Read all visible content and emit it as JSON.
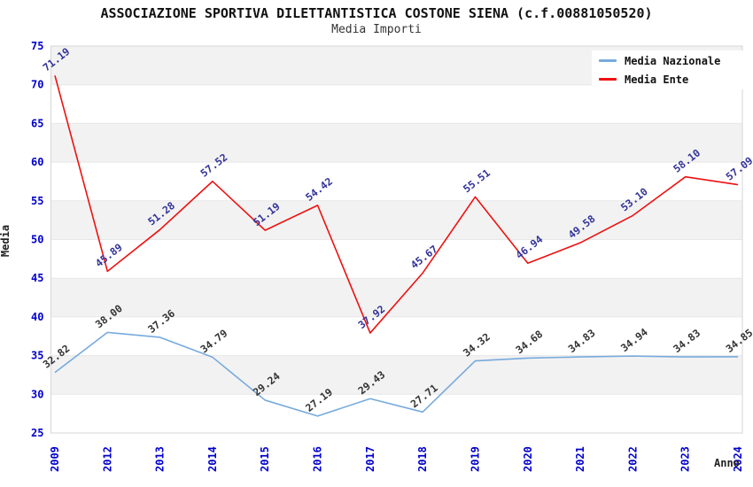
{
  "header": {
    "title": "ASSOCIAZIONE SPORTIVA DILETTANTISTICA COSTONE SIENA (c.f.00881050520)",
    "subtitle": "Media Importi"
  },
  "chart_data": {
    "type": "line",
    "title": "ASSOCIAZIONE SPORTIVA DILETTANTISTICA COSTONE SIENA (c.f.00881050520)",
    "subtitle": "Media Importi",
    "xlabel": "Anno",
    "ylabel": "Media",
    "ylim": [
      25,
      75
    ],
    "ytick_step": 5,
    "ytick_labels": [
      "25",
      "30",
      "35",
      "40",
      "45",
      "50",
      "55",
      "60",
      "65",
      "70",
      "75"
    ],
    "grid": true,
    "band_fill": "#f2f2f2",
    "gridline_color": "#e7e7e7",
    "plot_border_color": "#d6d6d6",
    "tick_label_color": "#0000cc",
    "legend_position": "top-right",
    "categories": [
      "2009",
      "2012",
      "2013",
      "2014",
      "2015",
      "2016",
      "2017",
      "2018",
      "2019",
      "2020",
      "2021",
      "2022",
      "2023",
      "2024"
    ],
    "series": [
      {
        "name": "Media Nazionale",
        "color": "#77aade",
        "label_color": "#333333",
        "values": [
          32.82,
          38.0,
          37.36,
          34.79,
          29.24,
          27.19,
          29.43,
          27.71,
          34.32,
          34.68,
          34.83,
          34.94,
          34.83,
          34.85
        ]
      },
      {
        "name": "Media Ente",
        "color": "#ee1111",
        "label_color": "#333399",
        "values": [
          71.19,
          45.89,
          51.28,
          57.52,
          51.19,
          54.42,
          37.92,
          45.67,
          55.51,
          46.94,
          49.58,
          53.1,
          58.1,
          57.09
        ]
      }
    ]
  }
}
